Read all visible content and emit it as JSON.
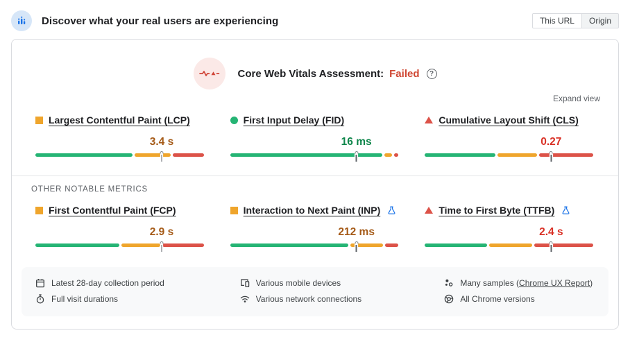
{
  "colors": {
    "bar_green": "#25b474",
    "bar_orange": "#efa52c",
    "bar_red": "#dc5248",
    "text_green": "#0f864b",
    "text_orange": "#a55a17",
    "text_red": "#d93025",
    "failed": "#cf4632",
    "experiment_blue": "#1a73e8"
  },
  "topbar": {
    "title": "Discover what your real users are experiencing",
    "toggle": [
      {
        "label": "This URL",
        "selected": true
      },
      {
        "label": "Origin",
        "selected": false
      }
    ]
  },
  "assessment": {
    "title": "Core Web Vitals Assessment:",
    "status": "Failed",
    "help_glyph": "?"
  },
  "expand_view_label": "Expand view",
  "core_metrics": [
    {
      "label": "Largest Contentful Paint (LCP)",
      "value": "3.4 s",
      "rating": "needs-improvement",
      "icon": "square-orange",
      "segments": [
        59,
        22,
        19
      ],
      "marker": 75,
      "experimental": false
    },
    {
      "label": "First Input Delay (FID)",
      "value": "16 ms",
      "rating": "good",
      "icon": "circle-green",
      "segments": [
        92.5,
        5,
        2.5
      ],
      "marker": 75,
      "experimental": false
    },
    {
      "label": "Cumulative Layout Shift (CLS)",
      "value": "0.27",
      "rating": "poor",
      "icon": "triangle-red",
      "segments": [
        43,
        24,
        33
      ],
      "marker": 75,
      "experimental": false
    }
  ],
  "other_metrics_label": "OTHER NOTABLE METRICS",
  "other_metrics": [
    {
      "label": "First Contentful Paint (FCP)",
      "value": "2.9 s",
      "rating": "needs-improvement",
      "icon": "square-orange",
      "segments": [
        51,
        24,
        25
      ],
      "marker": 75,
      "experimental": false
    },
    {
      "label": "Interaction to Next Paint (INP)",
      "value": "212 ms",
      "rating": "needs-improvement",
      "icon": "square-orange",
      "segments": [
        72,
        20,
        8
      ],
      "marker": 75,
      "experimental": true
    },
    {
      "label": "Time to First Byte (TTFB)",
      "value": "2.4 s",
      "rating": "poor",
      "icon": "triangle-red",
      "segments": [
        38,
        26,
        36
      ],
      "marker": 75,
      "experimental": true
    }
  ],
  "footnotes": {
    "col1": [
      {
        "icon": "calendar-icon",
        "text": "Latest 28-day collection period"
      },
      {
        "icon": "stopwatch-icon",
        "text": "Full visit durations"
      }
    ],
    "col2": [
      {
        "icon": "devices-icon",
        "text": "Various mobile devices"
      },
      {
        "icon": "wifi-icon",
        "text": "Various network connections"
      }
    ],
    "col3": [
      {
        "icon": "samples-icon",
        "text_prefix": "Many samples (",
        "link": "Chrome UX Report",
        "text_suffix": ")"
      },
      {
        "icon": "chrome-icon",
        "text": "All Chrome versions"
      }
    ]
  }
}
